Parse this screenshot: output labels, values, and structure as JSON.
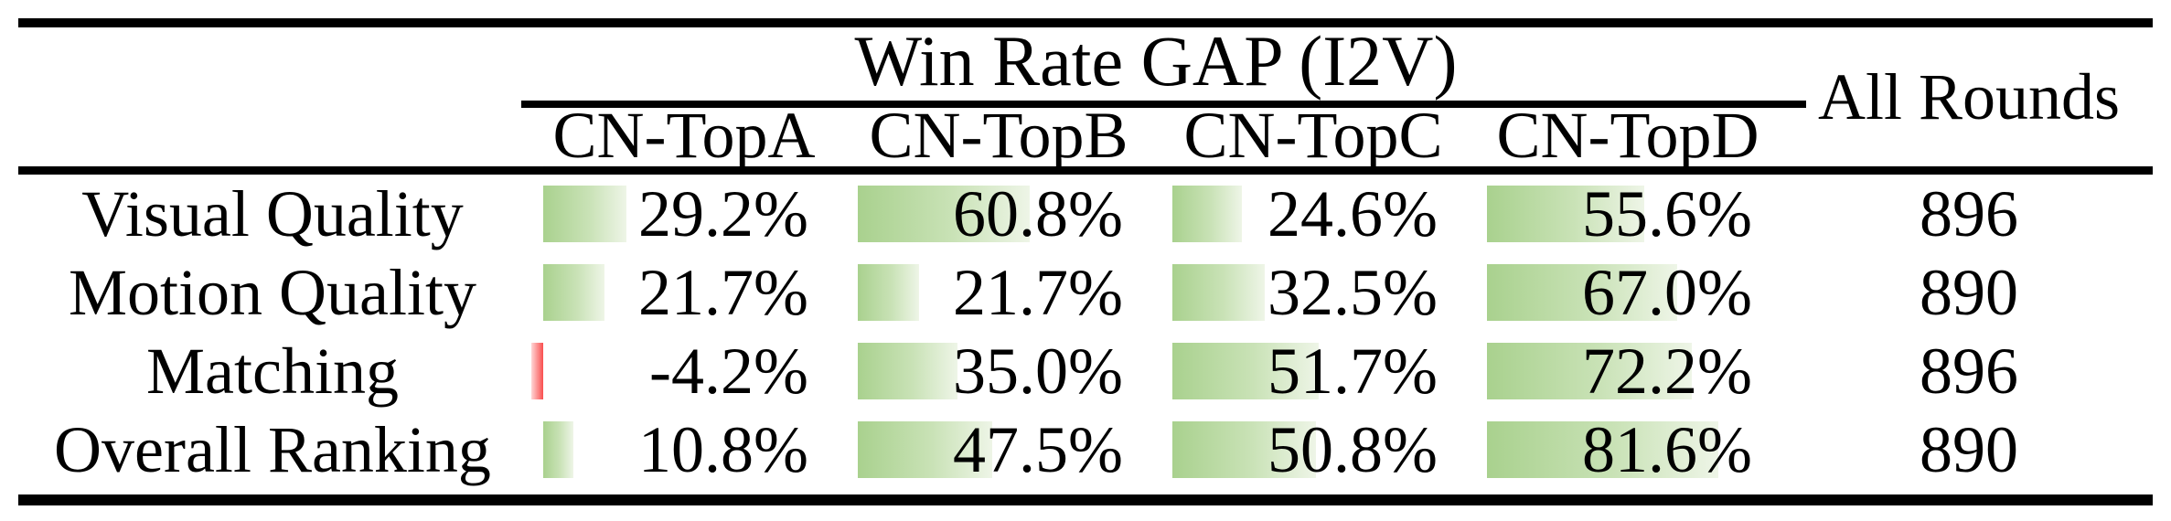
{
  "table": {
    "title": "Win Rate GAP (I2V)",
    "all_rounds_header": "All Rounds",
    "columns": [
      "CN-TopA",
      "CN-TopB",
      "CN-TopC",
      "CN-TopD"
    ],
    "rows": [
      {
        "label": "Visual Quality",
        "values": [
          29.2,
          60.8,
          24.6,
          55.6
        ],
        "display": [
          "29.2%",
          "60.8%",
          "24.6%",
          "55.6%"
        ],
        "all_rounds": "896"
      },
      {
        "label": "Motion Quality",
        "values": [
          21.7,
          21.7,
          32.5,
          67.0
        ],
        "display": [
          "21.7%",
          "21.7%",
          "32.5%",
          "67.0%"
        ],
        "all_rounds": "890"
      },
      {
        "label": "Matching",
        "values": [
          -4.2,
          35.0,
          51.7,
          72.2
        ],
        "display": [
          "-4.2%",
          "35.0%",
          "51.7%",
          "72.2%"
        ],
        "all_rounds": "896"
      },
      {
        "label": "Overall Ranking",
        "values": [
          10.8,
          47.5,
          50.8,
          81.6
        ],
        "display": [
          "10.8%",
          "47.5%",
          "50.8%",
          "81.6%"
        ],
        "all_rounds": "890"
      }
    ],
    "colors": {
      "bar_positive": "#a9d18e",
      "bar_positive_fade": "#eef5e7",
      "bar_negative": "#f94f4f",
      "bar_negative_fade": "#ffd6d6",
      "rule": "#000000"
    }
  },
  "chart_data": {
    "type": "table",
    "title": "Win Rate GAP (I2V)",
    "categories": [
      "Visual Quality",
      "Motion Quality",
      "Matching",
      "Overall Ranking"
    ],
    "series": [
      {
        "name": "CN-TopA",
        "values": [
          29.2,
          21.7,
          -4.2,
          10.8
        ]
      },
      {
        "name": "CN-TopB",
        "values": [
          60.8,
          21.7,
          35.0,
          47.5
        ]
      },
      {
        "name": "CN-TopC",
        "values": [
          24.6,
          32.5,
          51.7,
          50.8
        ]
      },
      {
        "name": "CN-TopD",
        "values": [
          55.6,
          67.0,
          72.2,
          81.6
        ]
      }
    ],
    "all_rounds": [
      896,
      890,
      896,
      890
    ],
    "unit": "%",
    "bar_style": "in-cell data bars, green gradient positive, red negative"
  }
}
